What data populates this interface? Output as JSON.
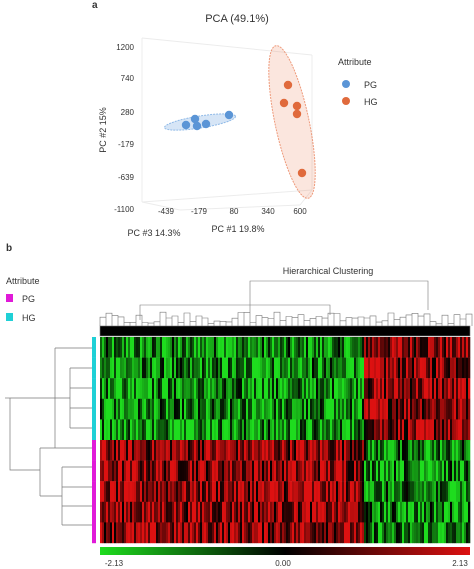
{
  "panel_a": {
    "label": "a"
  },
  "panel_b": {
    "label": "b"
  },
  "chart_data": [
    {
      "type": "scatter",
      "title": "PCA (49.1%)",
      "axes": {
        "y": {
          "label": "PC #2 15%",
          "ticks": [
            "1200",
            "740",
            "280",
            "-179",
            "-639",
            "-1100"
          ],
          "ylim": [
            -1100,
            1200
          ]
        },
        "x": {
          "label": "PC #1 19.8%",
          "ticks": [
            "80",
            "340",
            "600"
          ]
        },
        "z": {
          "label": "PC #3 14.3%",
          "ticks": [
            "-439",
            "-179"
          ]
        }
      },
      "legend": {
        "title": "Attribute",
        "placement": "right"
      },
      "series": [
        {
          "name": "PG",
          "color": "#6aa3e0",
          "points": 5
        },
        {
          "name": "HG",
          "color": "#e8754a",
          "points": 5
        }
      ],
      "grid": false
    },
    {
      "type": "heatmap",
      "title": "Hierarchical Clustering",
      "legend": {
        "title": "Attribute",
        "groups": [
          {
            "name": "PG",
            "color": "#e01ad8"
          },
          {
            "name": "HG",
            "color": "#1fd0d6"
          }
        ]
      },
      "rows": [
        {
          "group": "HG"
        },
        {
          "group": "HG"
        },
        {
          "group": "HG"
        },
        {
          "group": "HG"
        },
        {
          "group": "HG"
        },
        {
          "group": "PG"
        },
        {
          "group": "PG"
        },
        {
          "group": "PG"
        },
        {
          "group": "PG"
        },
        {
          "group": "PG"
        }
      ],
      "colorbar": {
        "min": -2.13,
        "mid": 0.0,
        "max": 2.13,
        "min_label": "-2.13",
        "mid_label": "0.00",
        "max_label": "2.13",
        "colors": [
          "#1edc1e",
          "#000000",
          "#dd1111"
        ]
      }
    }
  ]
}
